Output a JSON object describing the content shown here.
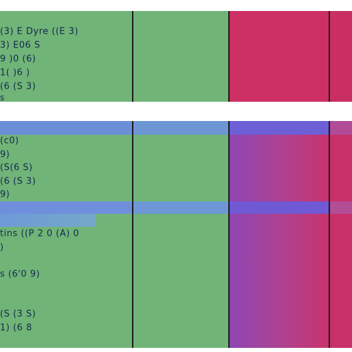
{
  "colors": {
    "green_cell": "#71b478",
    "magenta_cell": "#cc2f64",
    "blue_header": "#6f8fdd",
    "purple_cell": "#8f46b4",
    "divider": "#1d1a18",
    "text": "#132a4e"
  },
  "top_table": {
    "rows": [
      {
        "label": ""
      },
      {
        "label": "(3) E Dyre ((E 3)"
      },
      {
        "label": "3) E06 S"
      },
      {
        "label": "9 )0 (6)"
      },
      {
        "label": "1( )6 )"
      },
      {
        "label": "(6 (S 3)"
      },
      {
        "label": "s"
      }
    ]
  },
  "bottom_table": {
    "rows": [
      {
        "label": ""
      },
      {
        "label": "(c0)"
      },
      {
        "label": "9)"
      },
      {
        "label": "(S(6 S)"
      },
      {
        "label": "(6 (S 3)"
      },
      {
        "label": "9)"
      },
      {
        "label": ""
      },
      {
        "label": ""
      },
      {
        "label": "tins ((P 2 0 (A) 0"
      },
      {
        "label": ")"
      },
      {
        "label": ""
      },
      {
        "label": "s (6'0 9)"
      },
      {
        "label": ""
      },
      {
        "label": ""
      },
      {
        "label": "(S (3 S)"
      },
      {
        "label": "1) (6 8"
      },
      {
        "label": ""
      }
    ]
  }
}
